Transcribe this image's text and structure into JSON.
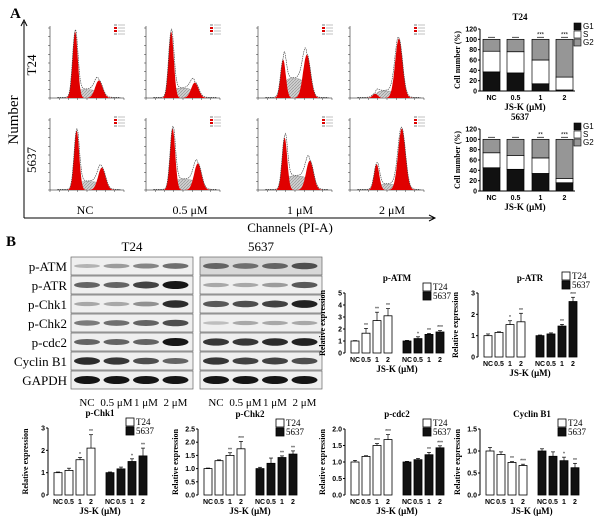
{
  "panel_labels": [
    "A",
    "B"
  ],
  "panel_a": {
    "y_axis_label": "Number",
    "x_axis_label": "Channels (PI-A)",
    "row_labels": [
      "T24",
      "5637"
    ],
    "column_labels": [
      "NC",
      "0.5 μM",
      "1 μM",
      "2 μM"
    ],
    "colors": {
      "g1_g2_peak": "#e00000",
      "s_phase": "#c8c8c8"
    },
    "histograms": [
      [
        {
          "g1_peak": 0.95,
          "g2_peak": 0.25,
          "s_level": 0.12
        },
        {
          "g1_peak": 0.95,
          "g2_peak": 0.22,
          "s_level": 0.14
        },
        {
          "g1_peak": 0.55,
          "g2_peak": 0.62,
          "s_level": 0.28
        },
        {
          "g1_peak": 0.06,
          "g2_peak": 0.85,
          "s_level": 0.1
        }
      ],
      [
        {
          "g1_peak": 0.85,
          "g2_peak": 0.32,
          "s_level": 0.12
        },
        {
          "g1_peak": 0.88,
          "g2_peak": 0.38,
          "s_level": 0.15
        },
        {
          "g1_peak": 0.75,
          "g2_peak": 0.42,
          "s_level": 0.2
        },
        {
          "g1_peak": 0.37,
          "g2_peak": 0.88,
          "s_level": 0.08
        }
      ]
    ]
  },
  "panel_b": {
    "cell_lines": [
      "T24",
      "5637"
    ],
    "proteins": [
      "p-ATM",
      "p-ATR",
      "p-Chk1",
      "p-Chk2",
      "p-cdc2",
      "Cyclin B1",
      "GAPDH"
    ],
    "lane_labels": [
      "NC",
      "0.5 μM",
      "1 μM",
      "2 μM"
    ],
    "band_intensity": {
      "T24": [
        [
          0.25,
          0.35,
          0.45,
          0.55
        ],
        [
          0.6,
          0.6,
          0.75,
          0.95
        ],
        [
          0.3,
          0.3,
          0.4,
          0.85
        ],
        [
          0.5,
          0.55,
          0.6,
          0.7
        ],
        [
          0.6,
          0.6,
          0.6,
          0.95
        ],
        [
          0.85,
          0.8,
          0.7,
          0.6
        ],
        [
          0.95,
          0.95,
          0.95,
          0.95
        ]
      ],
      "5637": [
        [
          0.6,
          0.55,
          0.6,
          0.7
        ],
        [
          0.3,
          0.3,
          0.35,
          0.65
        ],
        [
          0.65,
          0.7,
          0.75,
          0.9
        ],
        [
          0.2,
          0.3,
          0.3,
          0.3
        ],
        [
          0.8,
          0.8,
          0.85,
          0.9
        ],
        [
          0.8,
          0.75,
          0.75,
          0.7
        ],
        [
          0.95,
          0.95,
          0.95,
          0.95
        ]
      ]
    }
  },
  "chart_data": [
    {
      "type": "bar",
      "stacked": true,
      "title": "T24",
      "categories": [
        "NC",
        "0.5",
        "1",
        "2"
      ],
      "xlabel": "JS-K (μM)",
      "ylabel": "Cell number (%)",
      "ylim": [
        0,
        120
      ],
      "yticks": [
        "0",
        "20",
        "40",
        "60",
        "80",
        "100",
        "120"
      ],
      "series": [
        {
          "name": "G1",
          "values": [
            37,
            35,
            14,
            2
          ],
          "color": "#111111"
        },
        {
          "name": "S",
          "values": [
            40,
            41,
            46,
            25
          ],
          "color": "#ffffff"
        },
        {
          "name": "G2",
          "values": [
            23,
            24,
            40,
            73
          ],
          "color": "#9a9a9a"
        }
      ],
      "significance": [
        "",
        "",
        "***",
        "***"
      ],
      "legend": "right"
    },
    {
      "type": "bar",
      "stacked": true,
      "title": "5637",
      "categories": [
        "NC",
        "0.5",
        "1",
        "2"
      ],
      "xlabel": "JS-K (μM)",
      "ylabel": "Cell number (%)",
      "ylim": [
        0,
        120
      ],
      "yticks": [
        "0",
        "20",
        "40",
        "60",
        "80",
        "100",
        "120"
      ],
      "series": [
        {
          "name": "G1",
          "values": [
            45,
            42,
            34,
            16
          ],
          "color": "#111111"
        },
        {
          "name": "S",
          "values": [
            29,
            27,
            30,
            8
          ],
          "color": "#ffffff"
        },
        {
          "name": "G2",
          "values": [
            26,
            31,
            36,
            76
          ],
          "color": "#9a9a9a"
        }
      ],
      "significance": [
        "",
        "",
        "**",
        "***"
      ],
      "legend": "right"
    },
    {
      "type": "bar",
      "title": "p-ATM",
      "categories": [
        "NC",
        "0.5",
        "1",
        "2"
      ],
      "xlabel": "JS-K (μM)",
      "ylabel": "Relative expression",
      "ylim": [
        0,
        5
      ],
      "yticks": [
        "0",
        "1",
        "2",
        "3",
        "4",
        "5"
      ],
      "series": [
        {
          "name": "T24",
          "values": [
            1.0,
            1.65,
            2.7,
            3.1
          ],
          "errors": [
            0.03,
            0.4,
            0.7,
            0.6
          ],
          "significance": [
            "",
            "**",
            "**",
            "**"
          ],
          "color": "#ffffff"
        },
        {
          "name": "5637",
          "values": [
            1.0,
            1.2,
            1.55,
            1.75
          ],
          "errors": [
            0.05,
            0.15,
            0.08,
            0.12
          ],
          "significance": [
            "",
            "*",
            "**",
            "***"
          ],
          "color": "#111111"
        }
      ],
      "legend": "top-right"
    },
    {
      "type": "bar",
      "title": "p-ATR",
      "categories": [
        "NC",
        "0.5",
        "1",
        "2"
      ],
      "xlabel": "JS-K (μM)",
      "ylabel": "Relative expression",
      "ylim": [
        0,
        3
      ],
      "yticks": [
        "0",
        "1",
        "2",
        "3"
      ],
      "series": [
        {
          "name": "T24",
          "values": [
            1.0,
            1.15,
            1.52,
            1.65
          ],
          "errors": [
            0.08,
            0.03,
            0.18,
            0.4
          ],
          "significance": [
            "",
            "",
            "*",
            "**"
          ],
          "color": "#ffffff"
        },
        {
          "name": "5637",
          "values": [
            1.0,
            1.08,
            1.45,
            2.6
          ],
          "errors": [
            0.03,
            0.05,
            0.08,
            0.2
          ],
          "significance": [
            "",
            "",
            "**",
            "***"
          ],
          "color": "#111111"
        }
      ],
      "legend": "top-right"
    },
    {
      "type": "bar",
      "title": "p-Chk1",
      "categories": [
        "NC",
        "0.5",
        "1",
        "2"
      ],
      "xlabel": "JS-K (μM)",
      "ylabel": "Relative expression",
      "ylim": [
        0,
        3
      ],
      "yticks": [
        "0",
        "1",
        "2",
        "3"
      ],
      "series": [
        {
          "name": "T24",
          "values": [
            1.0,
            1.1,
            1.58,
            2.1
          ],
          "errors": [
            0.03,
            0.1,
            0.1,
            0.6
          ],
          "significance": [
            "",
            "",
            "*",
            "**"
          ],
          "color": "#ffffff"
        },
        {
          "name": "5637",
          "values": [
            1.0,
            1.17,
            1.5,
            1.75
          ],
          "errors": [
            0.03,
            0.08,
            0.12,
            0.35
          ],
          "significance": [
            "",
            "",
            "*",
            "**"
          ],
          "color": "#111111"
        }
      ],
      "legend": "top-right"
    },
    {
      "type": "bar",
      "title": "p-Chk2",
      "categories": [
        "NC",
        "0.5",
        "1",
        "2"
      ],
      "xlabel": "JS-K (μM)",
      "ylabel": "Relative expression",
      "ylim": [
        0,
        2.5
      ],
      "yticks": [
        "0.0",
        "0.5",
        "1.0",
        "1.5",
        "2.0",
        "2.5"
      ],
      "series": [
        {
          "name": "T24",
          "values": [
            1.0,
            1.3,
            1.5,
            1.75
          ],
          "errors": [
            0.02,
            0.03,
            0.1,
            0.28
          ],
          "significance": [
            "",
            "",
            "**",
            "***"
          ],
          "color": "#ffffff"
        },
        {
          "name": "5637",
          "values": [
            1.0,
            1.2,
            1.42,
            1.55
          ],
          "errors": [
            0.05,
            0.2,
            0.06,
            0.12
          ],
          "significance": [
            "",
            "",
            "**",
            "**"
          ],
          "color": "#111111"
        }
      ],
      "legend": "top-right"
    },
    {
      "type": "bar",
      "title": "p-cdc2",
      "categories": [
        "NC",
        "0.5",
        "1",
        "2"
      ],
      "xlabel": "JS-K (μM)",
      "ylabel": "Relative expression",
      "ylim": [
        0,
        2.0
      ],
      "yticks": [
        "0.0",
        "0.5",
        "1.0",
        "1.5",
        "2.0"
      ],
      "series": [
        {
          "name": "T24",
          "values": [
            1.0,
            1.17,
            1.5,
            1.68
          ],
          "errors": [
            0.05,
            0.02,
            0.06,
            0.15
          ],
          "significance": [
            "",
            "",
            "***",
            "***"
          ],
          "color": "#ffffff"
        },
        {
          "name": "5637",
          "values": [
            1.0,
            1.07,
            1.22,
            1.43
          ],
          "errors": [
            0.02,
            0.04,
            0.07,
            0.06
          ],
          "significance": [
            "",
            "",
            "**",
            "***"
          ],
          "color": "#111111"
        }
      ],
      "legend": "top-right"
    },
    {
      "type": "bar",
      "title": "Cyclin B1",
      "categories": [
        "NC",
        "0.5",
        "1",
        "2"
      ],
      "xlabel": "JS-K (μM)",
      "ylabel": "Relative expression",
      "ylim": [
        0,
        1.5
      ],
      "yticks": [
        "0.0",
        "0.5",
        "1.0",
        "1.5"
      ],
      "series": [
        {
          "name": "T24",
          "values": [
            1.0,
            0.92,
            0.74,
            0.67
          ],
          "errors": [
            0.08,
            0.06,
            0.02,
            0.03
          ],
          "significance": [
            "",
            "",
            "**",
            "***"
          ],
          "color": "#ffffff"
        },
        {
          "name": "5637",
          "values": [
            1.0,
            0.88,
            0.78,
            0.62
          ],
          "errors": [
            0.05,
            0.1,
            0.08,
            0.1
          ],
          "significance": [
            "",
            "",
            "*",
            "**"
          ],
          "color": "#111111"
        }
      ],
      "legend": "top-right"
    }
  ]
}
